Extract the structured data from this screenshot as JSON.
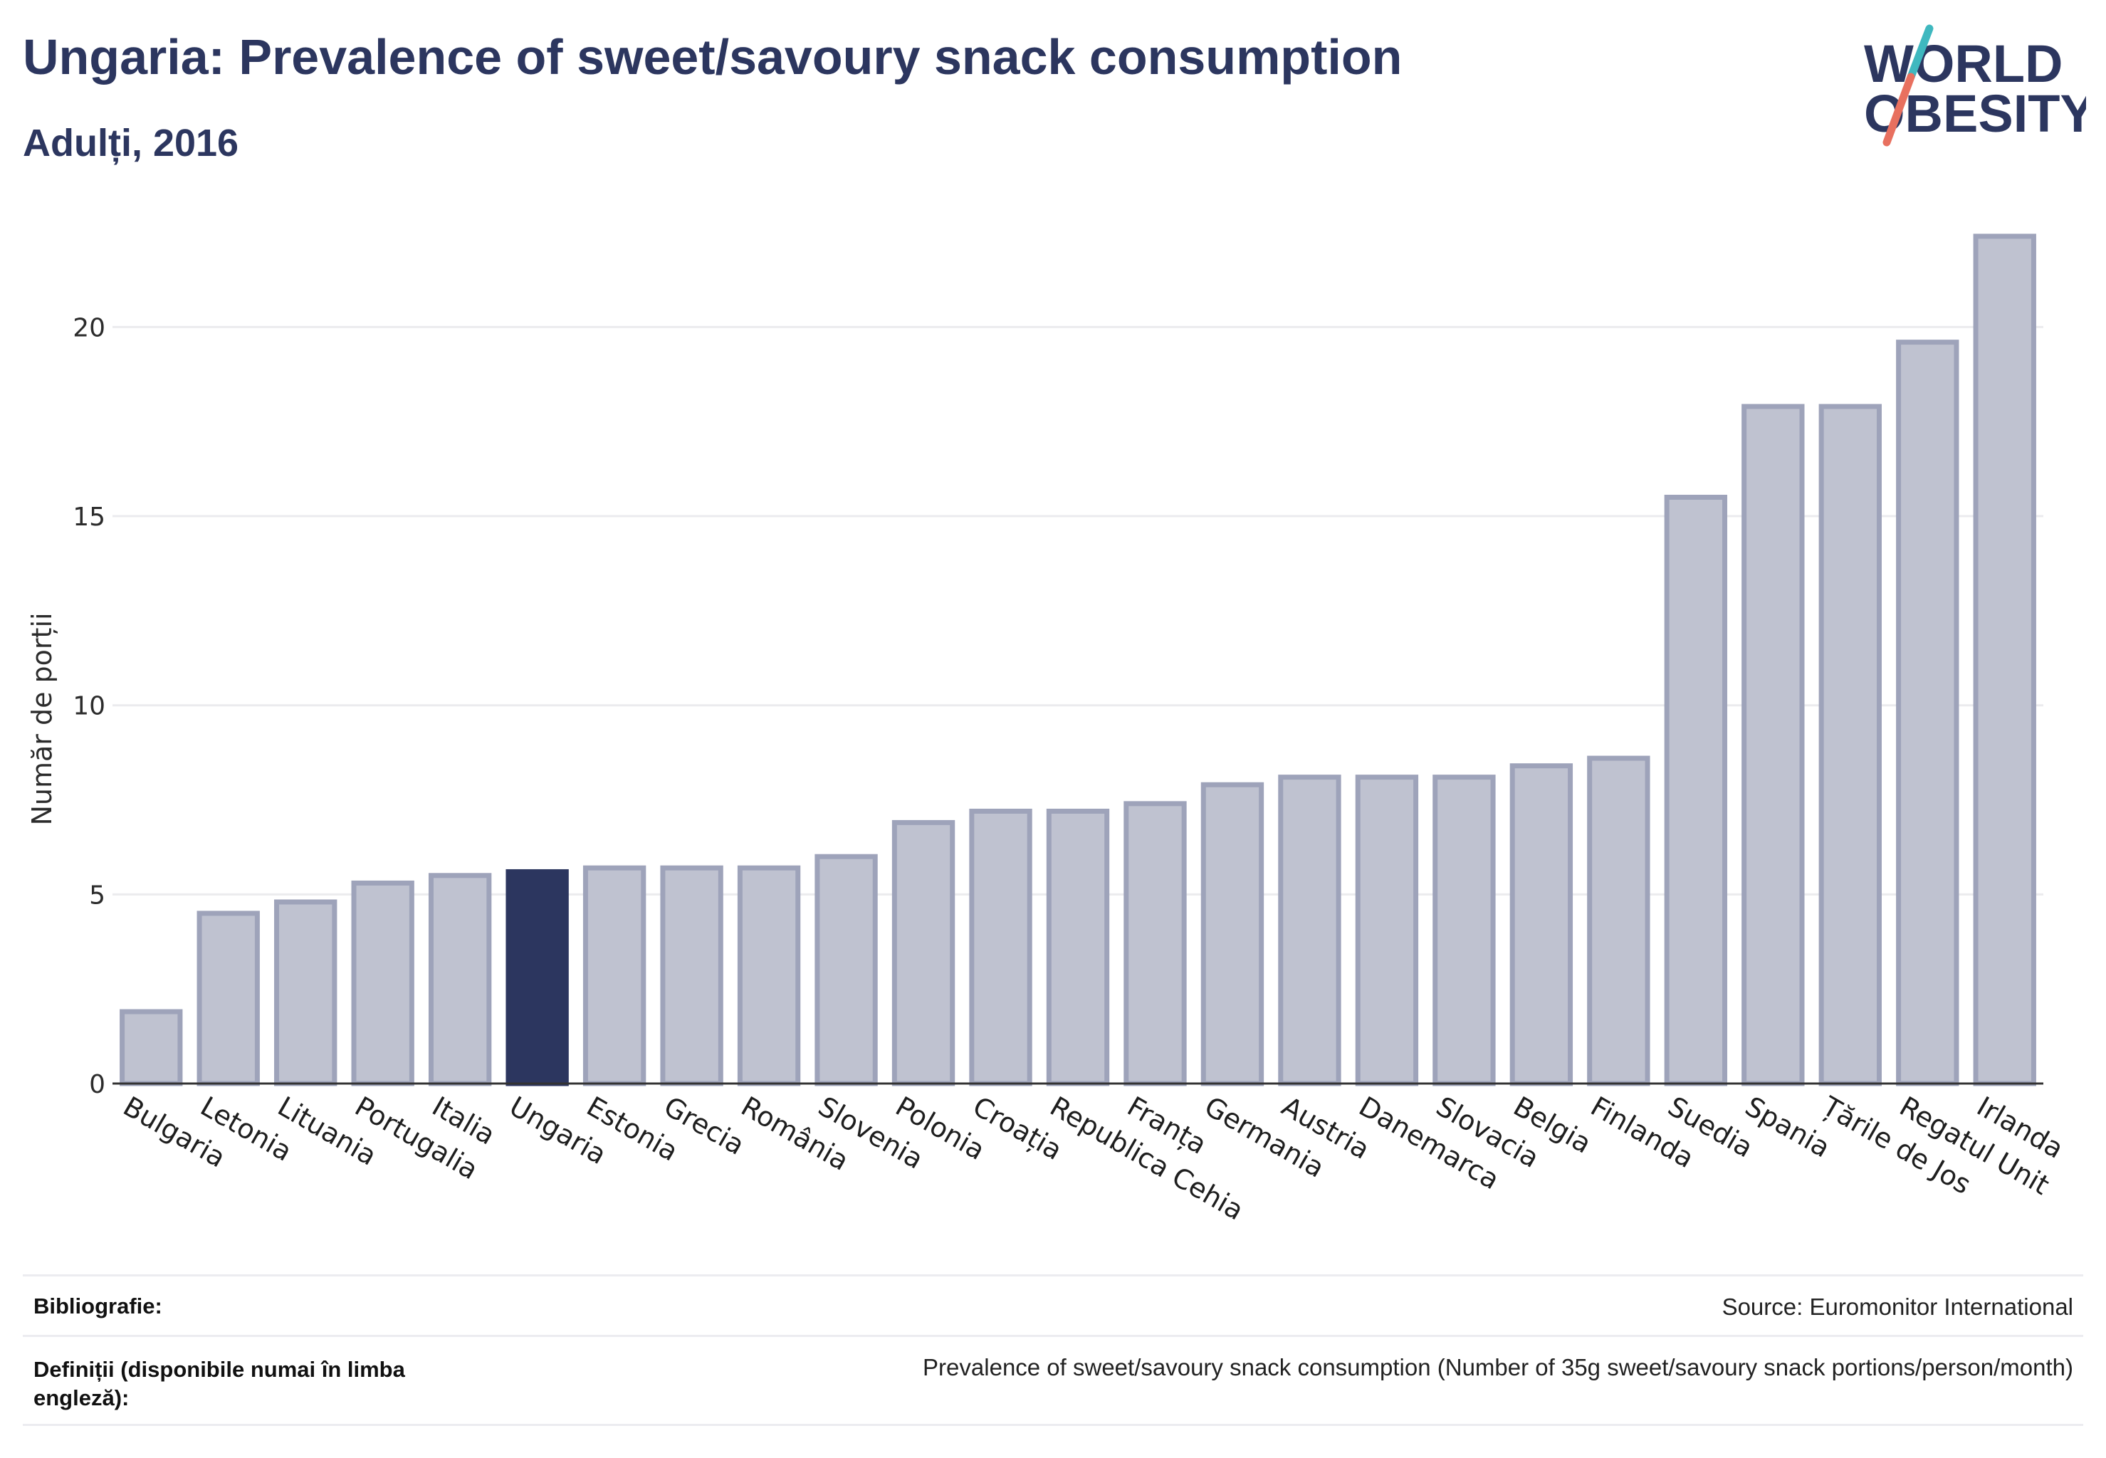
{
  "header": {
    "title": "Ungaria: Prevalence of sweet/savoury snack consumption",
    "subtitle": "Adulți, 2016"
  },
  "logo": {
    "line1": "WORLD",
    "line2": "OBESITY",
    "accent_teal": "#3fb8bf",
    "accent_coral": "#e8705f"
  },
  "colors": {
    "bar_default": "#bfc2d0",
    "bar_border": "#9ea3ba",
    "bar_highlight": "#2c365f",
    "gridline": "#ebebee",
    "axis_line": "#333333",
    "text_dark": "#2c365f"
  },
  "chart_data": {
    "type": "bar",
    "title": "Ungaria: Prevalence of sweet/savoury snack consumption",
    "subtitle": "Adulți, 2016",
    "ylabel": "Număr de porții",
    "xlabel": "",
    "ylim": [
      0,
      23
    ],
    "yticks": [
      0,
      5,
      10,
      15,
      20
    ],
    "grid": true,
    "highlight": "Ungaria",
    "categories": [
      "Bulgaria",
      "Letonia",
      "Lituania",
      "Portugalia",
      "Italia",
      "Ungaria",
      "Estonia",
      "Grecia",
      "România",
      "Slovenia",
      "Polonia",
      "Croația",
      "Republica Cehia",
      "Franța",
      "Germania",
      "Austria",
      "Danemarca",
      "Slovacia",
      "Belgia",
      "Finlanda",
      "Suedia",
      "Spania",
      "Țările de Jos",
      "Regatul Unit",
      "Irlanda"
    ],
    "values": [
      1.9,
      4.5,
      4.8,
      5.3,
      5.5,
      5.6,
      5.7,
      5.7,
      5.7,
      6.0,
      6.9,
      7.2,
      7.2,
      7.4,
      7.9,
      8.1,
      8.1,
      8.1,
      8.4,
      8.6,
      15.5,
      17.9,
      17.9,
      19.6,
      22.4
    ]
  },
  "footer": {
    "bibliography_label": "Bibliografie:",
    "bibliography_value": "Source: Euromonitor International",
    "definitions_label": "Definiții (disponibile numai în limba engleză):",
    "definitions_value": "Prevalence of sweet/savoury snack consumption (Number of 35g sweet/savoury snack portions/person/month)"
  }
}
